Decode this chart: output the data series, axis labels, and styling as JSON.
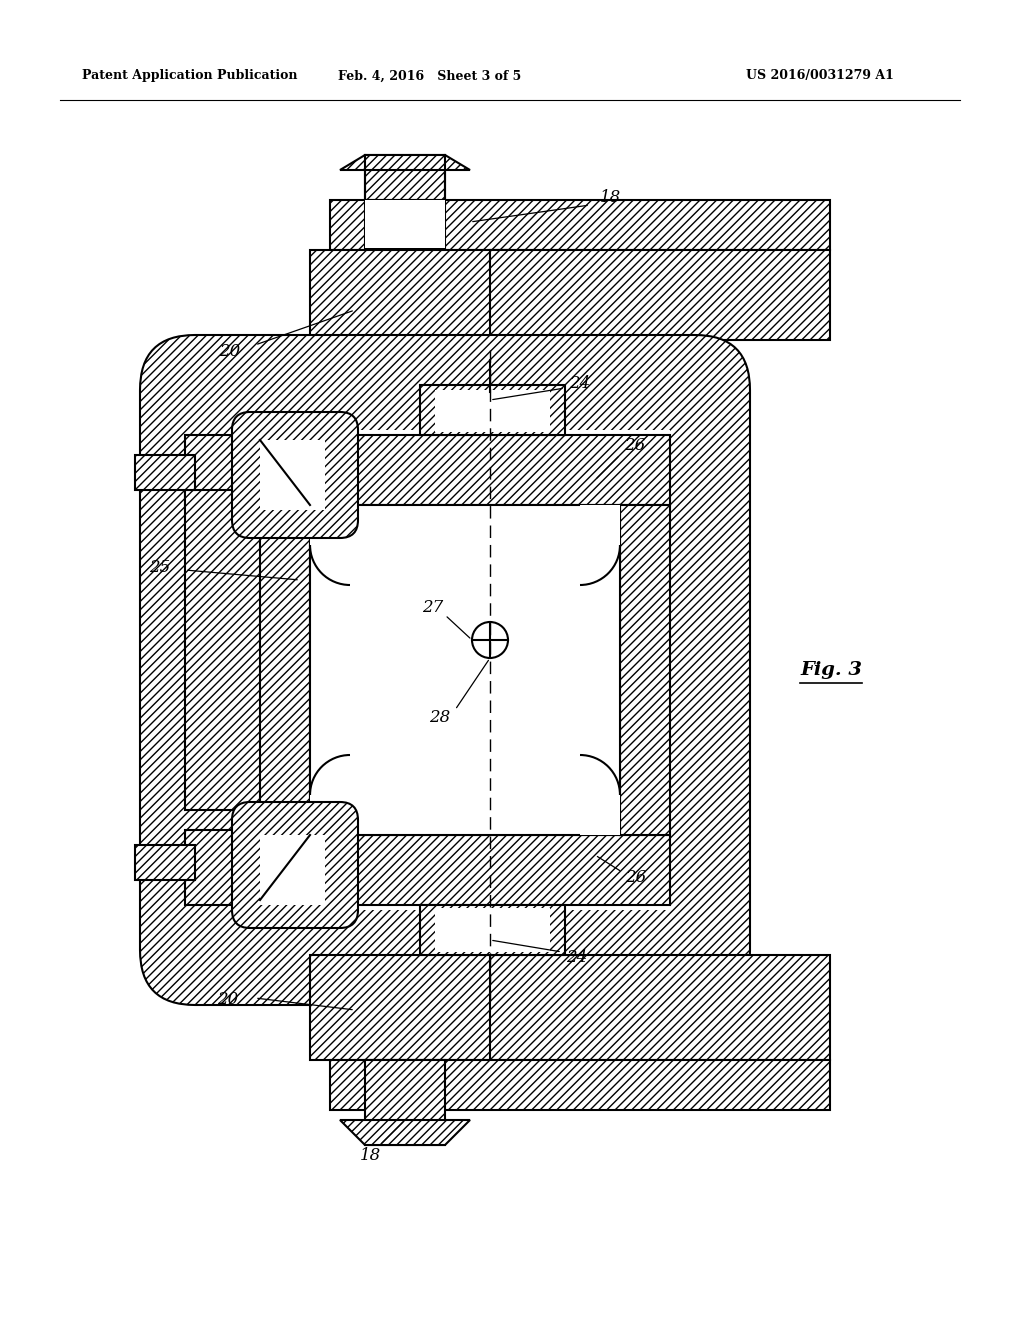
{
  "title_left": "Patent Application Publication",
  "title_mid": "Feb. 4, 2016   Sheet 3 of 5",
  "title_right": "US 2016/0031279 A1",
  "fig_label": "Fig. 3",
  "background_color": "#ffffff"
}
